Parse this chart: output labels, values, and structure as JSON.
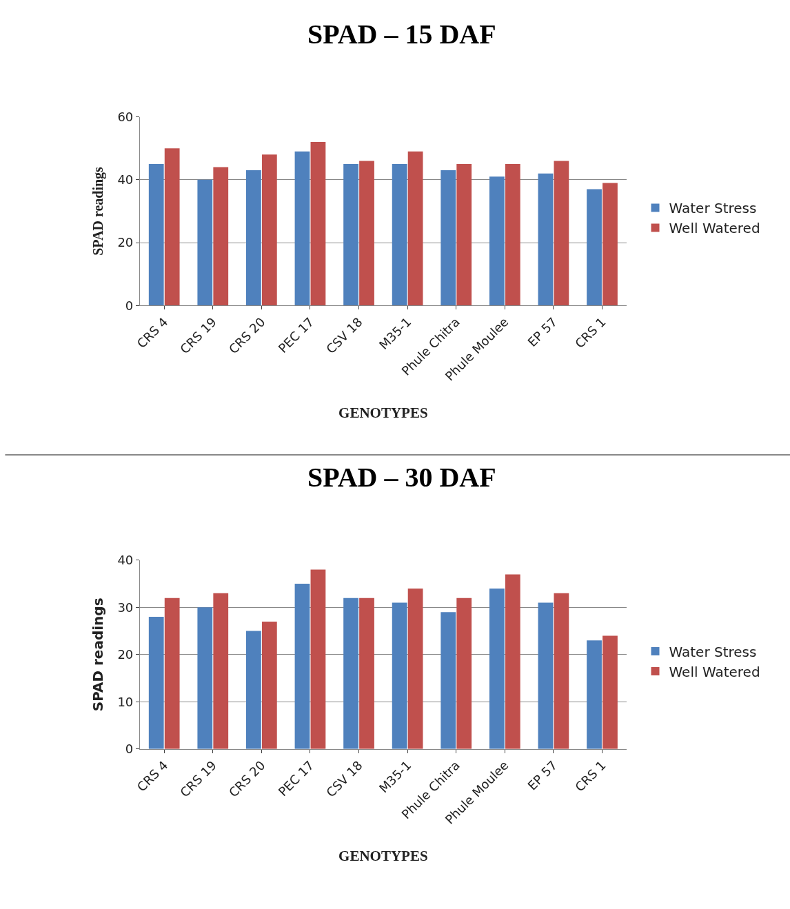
{
  "chart_data": [
    {
      "type": "bar",
      "title": "SPAD – 15 DAF",
      "xlabel": "GENOTYPES",
      "ylabel": "SPAD readings",
      "categories": [
        "CRS 4",
        "CRS 19",
        "CRS 20",
        "PEC 17",
        "CSV 18",
        "M35-1",
        "Phule Chitra",
        "Phule Moulee",
        "EP 57",
        "CRS 1"
      ],
      "series": [
        {
          "name": "Water Stress",
          "color": "#4f81bd",
          "values": [
            45,
            40,
            43,
            49,
            45,
            45,
            43,
            41,
            42,
            37
          ]
        },
        {
          "name": "Well Watered",
          "color": "#c0504d",
          "values": [
            50,
            44,
            48,
            52,
            46,
            49,
            45,
            45,
            46,
            39
          ]
        }
      ],
      "ylim": [
        0,
        60
      ],
      "yticks": [
        0,
        20,
        40,
        60
      ],
      "grid": "y",
      "legend": "right"
    },
    {
      "type": "bar",
      "title": "SPAD – 30 DAF",
      "xlabel": "GENOTYPES",
      "ylabel": "SPAD readings",
      "categories": [
        "CRS 4",
        "CRS 19",
        "CRS 20",
        "PEC 17",
        "CSV 18",
        "M35-1",
        "Phule Chitra",
        "Phule Moulee",
        "EP 57",
        "CRS 1"
      ],
      "series": [
        {
          "name": "Water Stress",
          "color": "#4f81bd",
          "values": [
            28,
            30,
            25,
            35,
            32,
            31,
            29,
            34,
            31,
            23
          ]
        },
        {
          "name": "Well Watered",
          "color": "#c0504d",
          "values": [
            32,
            33,
            27,
            38,
            32,
            34,
            32,
            37,
            33,
            24
          ]
        }
      ],
      "ylim": [
        0,
        40
      ],
      "yticks": [
        0,
        10,
        20,
        30,
        40
      ],
      "grid": "y",
      "legend": "right"
    }
  ]
}
